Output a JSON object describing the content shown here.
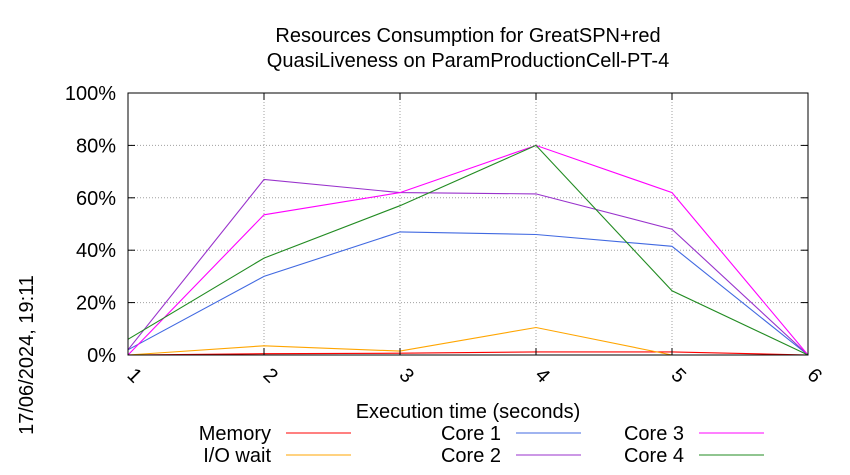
{
  "chart_data": {
    "type": "line",
    "title_line1": "Resources Consumption for GreatSPN+red",
    "title_line2": "QuasiLiveness on ParamProductionCell-PT-4",
    "xlabel": "Execution time (seconds)",
    "ylabel": "",
    "timestamp": "17/06/2024, 19:11",
    "x": [
      1,
      2,
      3,
      4,
      5,
      6
    ],
    "x_ticks": [
      "1",
      "2",
      "3",
      "4",
      "5",
      "6"
    ],
    "y_ticks": [
      "0%",
      "20%",
      "40%",
      "60%",
      "80%",
      "100%"
    ],
    "y_tick_values": [
      0,
      20,
      40,
      60,
      80,
      100
    ],
    "xlim": [
      1,
      6
    ],
    "ylim": [
      0,
      100
    ],
    "grid": true,
    "legend_position": "bottom",
    "series": [
      {
        "name": "Memory",
        "color": "#ff0000",
        "values": [
          0,
          0.5,
          0.7,
          1.2,
          1.2,
          0
        ]
      },
      {
        "name": "I/O wait",
        "color": "#ffa500",
        "values": [
          0,
          3.5,
          1.5,
          10.5,
          0,
          0
        ]
      },
      {
        "name": "Core 1",
        "color": "#4169e1",
        "values": [
          2,
          30,
          47,
          46,
          41.5,
          0
        ]
      },
      {
        "name": "Core 2",
        "color": "#9932cc",
        "values": [
          2,
          67,
          62,
          61.5,
          48,
          0
        ]
      },
      {
        "name": "Core 3",
        "color": "#ff00ff",
        "values": [
          0,
          53.5,
          62,
          80,
          62,
          0
        ]
      },
      {
        "name": "Core 4",
        "color": "#228b22",
        "values": [
          6,
          37,
          57,
          80,
          24.5,
          0
        ]
      }
    ]
  }
}
